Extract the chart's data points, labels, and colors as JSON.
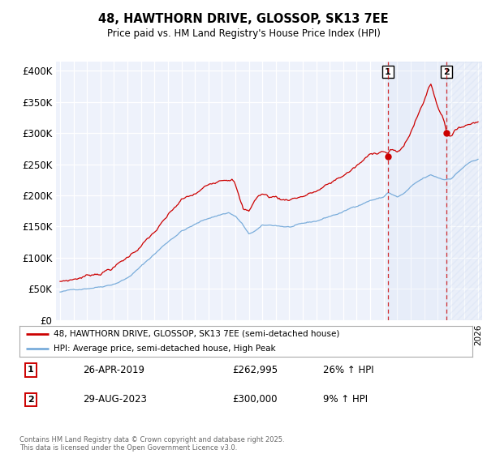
{
  "title": "48, HAWTHORN DRIVE, GLOSSOP, SK13 7EE",
  "subtitle": "Price paid vs. HM Land Registry's House Price Index (HPI)",
  "ylabel_ticks": [
    "£0",
    "£50K",
    "£100K",
    "£150K",
    "£200K",
    "£250K",
    "£300K",
    "£350K",
    "£400K"
  ],
  "ytick_values": [
    0,
    50000,
    100000,
    150000,
    200000,
    250000,
    300000,
    350000,
    400000
  ],
  "ylim": [
    0,
    415000
  ],
  "xlim_start": 1994.7,
  "xlim_end": 2026.3,
  "red_color": "#cc0000",
  "blue_color": "#7aaddb",
  "dashed_color": "#cc0000",
  "marker1_x": 2019.32,
  "marker2_x": 2023.66,
  "sale1_date": "26-APR-2019",
  "sale1_price": "£262,995",
  "sale1_hpi": "26% ↑ HPI",
  "sale2_date": "29-AUG-2023",
  "sale2_price": "£300,000",
  "sale2_hpi": "9% ↑ HPI",
  "legend1": "48, HAWTHORN DRIVE, GLOSSOP, SK13 7EE (semi-detached house)",
  "legend2": "HPI: Average price, semi-detached house, High Peak",
  "footnote": "Contains HM Land Registry data © Crown copyright and database right 2025.\nThis data is licensed under the Open Government Licence v3.0.",
  "background_color": "#eef2fb"
}
